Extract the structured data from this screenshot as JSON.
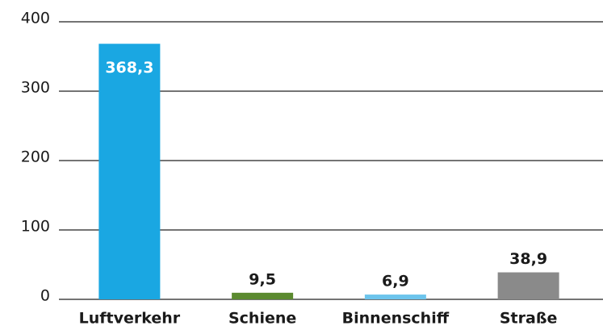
{
  "chart_data": {
    "type": "bar",
    "categories": [
      "Luftverkehr",
      "Schiene",
      "Binnenschiff",
      "Straße"
    ],
    "values": [
      368.3,
      9.5,
      6.9,
      38.9
    ],
    "value_labels": [
      "368,3",
      "9,5",
      "6,9",
      "38,9"
    ],
    "colors": [
      "#1aa7e2",
      "#5b8a2f",
      "#6cc4ec",
      "#8a8a8a"
    ],
    "ylim": [
      0,
      400
    ],
    "yticks": [
      0,
      100,
      200,
      300,
      400
    ],
    "grid": true
  }
}
